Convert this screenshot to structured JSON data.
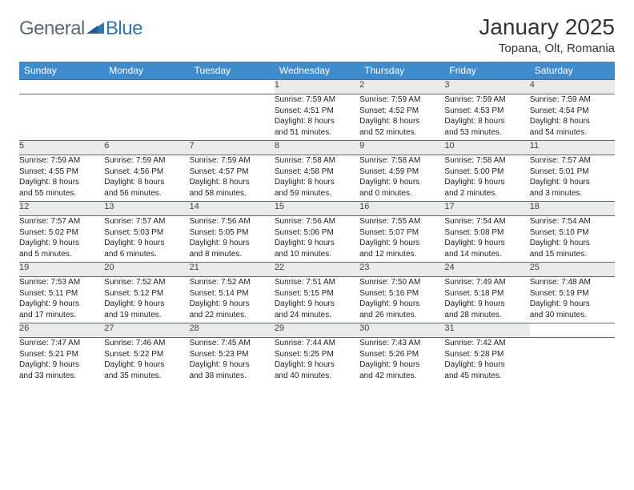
{
  "logo": {
    "general": "General",
    "blue": "Blue"
  },
  "title": "January 2025",
  "location": "Topana, Olt, Romania",
  "colors": {
    "header_bg": "#3e8ccc",
    "header_text": "#ffffff",
    "border": "#2e75b6",
    "daynum_bg": "#eaeaea",
    "page_bg": "#ffffff",
    "logo_gray": "#5a6b78",
    "logo_blue": "#2e75b6"
  },
  "weekdays": [
    "Sunday",
    "Monday",
    "Tuesday",
    "Wednesday",
    "Thursday",
    "Friday",
    "Saturday"
  ],
  "weeks": [
    [
      null,
      null,
      null,
      {
        "n": "1",
        "sunrise": "7:59 AM",
        "sunset": "4:51 PM",
        "dl1": "Daylight: 8 hours",
        "dl2": "and 51 minutes."
      },
      {
        "n": "2",
        "sunrise": "7:59 AM",
        "sunset": "4:52 PM",
        "dl1": "Daylight: 8 hours",
        "dl2": "and 52 minutes."
      },
      {
        "n": "3",
        "sunrise": "7:59 AM",
        "sunset": "4:53 PM",
        "dl1": "Daylight: 8 hours",
        "dl2": "and 53 minutes."
      },
      {
        "n": "4",
        "sunrise": "7:59 AM",
        "sunset": "4:54 PM",
        "dl1": "Daylight: 8 hours",
        "dl2": "and 54 minutes."
      }
    ],
    [
      {
        "n": "5",
        "sunrise": "7:59 AM",
        "sunset": "4:55 PM",
        "dl1": "Daylight: 8 hours",
        "dl2": "and 55 minutes."
      },
      {
        "n": "6",
        "sunrise": "7:59 AM",
        "sunset": "4:56 PM",
        "dl1": "Daylight: 8 hours",
        "dl2": "and 56 minutes."
      },
      {
        "n": "7",
        "sunrise": "7:59 AM",
        "sunset": "4:57 PM",
        "dl1": "Daylight: 8 hours",
        "dl2": "and 58 minutes."
      },
      {
        "n": "8",
        "sunrise": "7:58 AM",
        "sunset": "4:58 PM",
        "dl1": "Daylight: 8 hours",
        "dl2": "and 59 minutes."
      },
      {
        "n": "9",
        "sunrise": "7:58 AM",
        "sunset": "4:59 PM",
        "dl1": "Daylight: 9 hours",
        "dl2": "and 0 minutes."
      },
      {
        "n": "10",
        "sunrise": "7:58 AM",
        "sunset": "5:00 PM",
        "dl1": "Daylight: 9 hours",
        "dl2": "and 2 minutes."
      },
      {
        "n": "11",
        "sunrise": "7:57 AM",
        "sunset": "5:01 PM",
        "dl1": "Daylight: 9 hours",
        "dl2": "and 3 minutes."
      }
    ],
    [
      {
        "n": "12",
        "sunrise": "7:57 AM",
        "sunset": "5:02 PM",
        "dl1": "Daylight: 9 hours",
        "dl2": "and 5 minutes."
      },
      {
        "n": "13",
        "sunrise": "7:57 AM",
        "sunset": "5:03 PM",
        "dl1": "Daylight: 9 hours",
        "dl2": "and 6 minutes."
      },
      {
        "n": "14",
        "sunrise": "7:56 AM",
        "sunset": "5:05 PM",
        "dl1": "Daylight: 9 hours",
        "dl2": "and 8 minutes."
      },
      {
        "n": "15",
        "sunrise": "7:56 AM",
        "sunset": "5:06 PM",
        "dl1": "Daylight: 9 hours",
        "dl2": "and 10 minutes."
      },
      {
        "n": "16",
        "sunrise": "7:55 AM",
        "sunset": "5:07 PM",
        "dl1": "Daylight: 9 hours",
        "dl2": "and 12 minutes."
      },
      {
        "n": "17",
        "sunrise": "7:54 AM",
        "sunset": "5:08 PM",
        "dl1": "Daylight: 9 hours",
        "dl2": "and 14 minutes."
      },
      {
        "n": "18",
        "sunrise": "7:54 AM",
        "sunset": "5:10 PM",
        "dl1": "Daylight: 9 hours",
        "dl2": "and 15 minutes."
      }
    ],
    [
      {
        "n": "19",
        "sunrise": "7:53 AM",
        "sunset": "5:11 PM",
        "dl1": "Daylight: 9 hours",
        "dl2": "and 17 minutes."
      },
      {
        "n": "20",
        "sunrise": "7:52 AM",
        "sunset": "5:12 PM",
        "dl1": "Daylight: 9 hours",
        "dl2": "and 19 minutes."
      },
      {
        "n": "21",
        "sunrise": "7:52 AM",
        "sunset": "5:14 PM",
        "dl1": "Daylight: 9 hours",
        "dl2": "and 22 minutes."
      },
      {
        "n": "22",
        "sunrise": "7:51 AM",
        "sunset": "5:15 PM",
        "dl1": "Daylight: 9 hours",
        "dl2": "and 24 minutes."
      },
      {
        "n": "23",
        "sunrise": "7:50 AM",
        "sunset": "5:16 PM",
        "dl1": "Daylight: 9 hours",
        "dl2": "and 26 minutes."
      },
      {
        "n": "24",
        "sunrise": "7:49 AM",
        "sunset": "5:18 PM",
        "dl1": "Daylight: 9 hours",
        "dl2": "and 28 minutes."
      },
      {
        "n": "25",
        "sunrise": "7:48 AM",
        "sunset": "5:19 PM",
        "dl1": "Daylight: 9 hours",
        "dl2": "and 30 minutes."
      }
    ],
    [
      {
        "n": "26",
        "sunrise": "7:47 AM",
        "sunset": "5:21 PM",
        "dl1": "Daylight: 9 hours",
        "dl2": "and 33 minutes."
      },
      {
        "n": "27",
        "sunrise": "7:46 AM",
        "sunset": "5:22 PM",
        "dl1": "Daylight: 9 hours",
        "dl2": "and 35 minutes."
      },
      {
        "n": "28",
        "sunrise": "7:45 AM",
        "sunset": "5:23 PM",
        "dl1": "Daylight: 9 hours",
        "dl2": "and 38 minutes."
      },
      {
        "n": "29",
        "sunrise": "7:44 AM",
        "sunset": "5:25 PM",
        "dl1": "Daylight: 9 hours",
        "dl2": "and 40 minutes."
      },
      {
        "n": "30",
        "sunrise": "7:43 AM",
        "sunset": "5:26 PM",
        "dl1": "Daylight: 9 hours",
        "dl2": "and 42 minutes."
      },
      {
        "n": "31",
        "sunrise": "7:42 AM",
        "sunset": "5:28 PM",
        "dl1": "Daylight: 9 hours",
        "dl2": "and 45 minutes."
      },
      null
    ]
  ]
}
